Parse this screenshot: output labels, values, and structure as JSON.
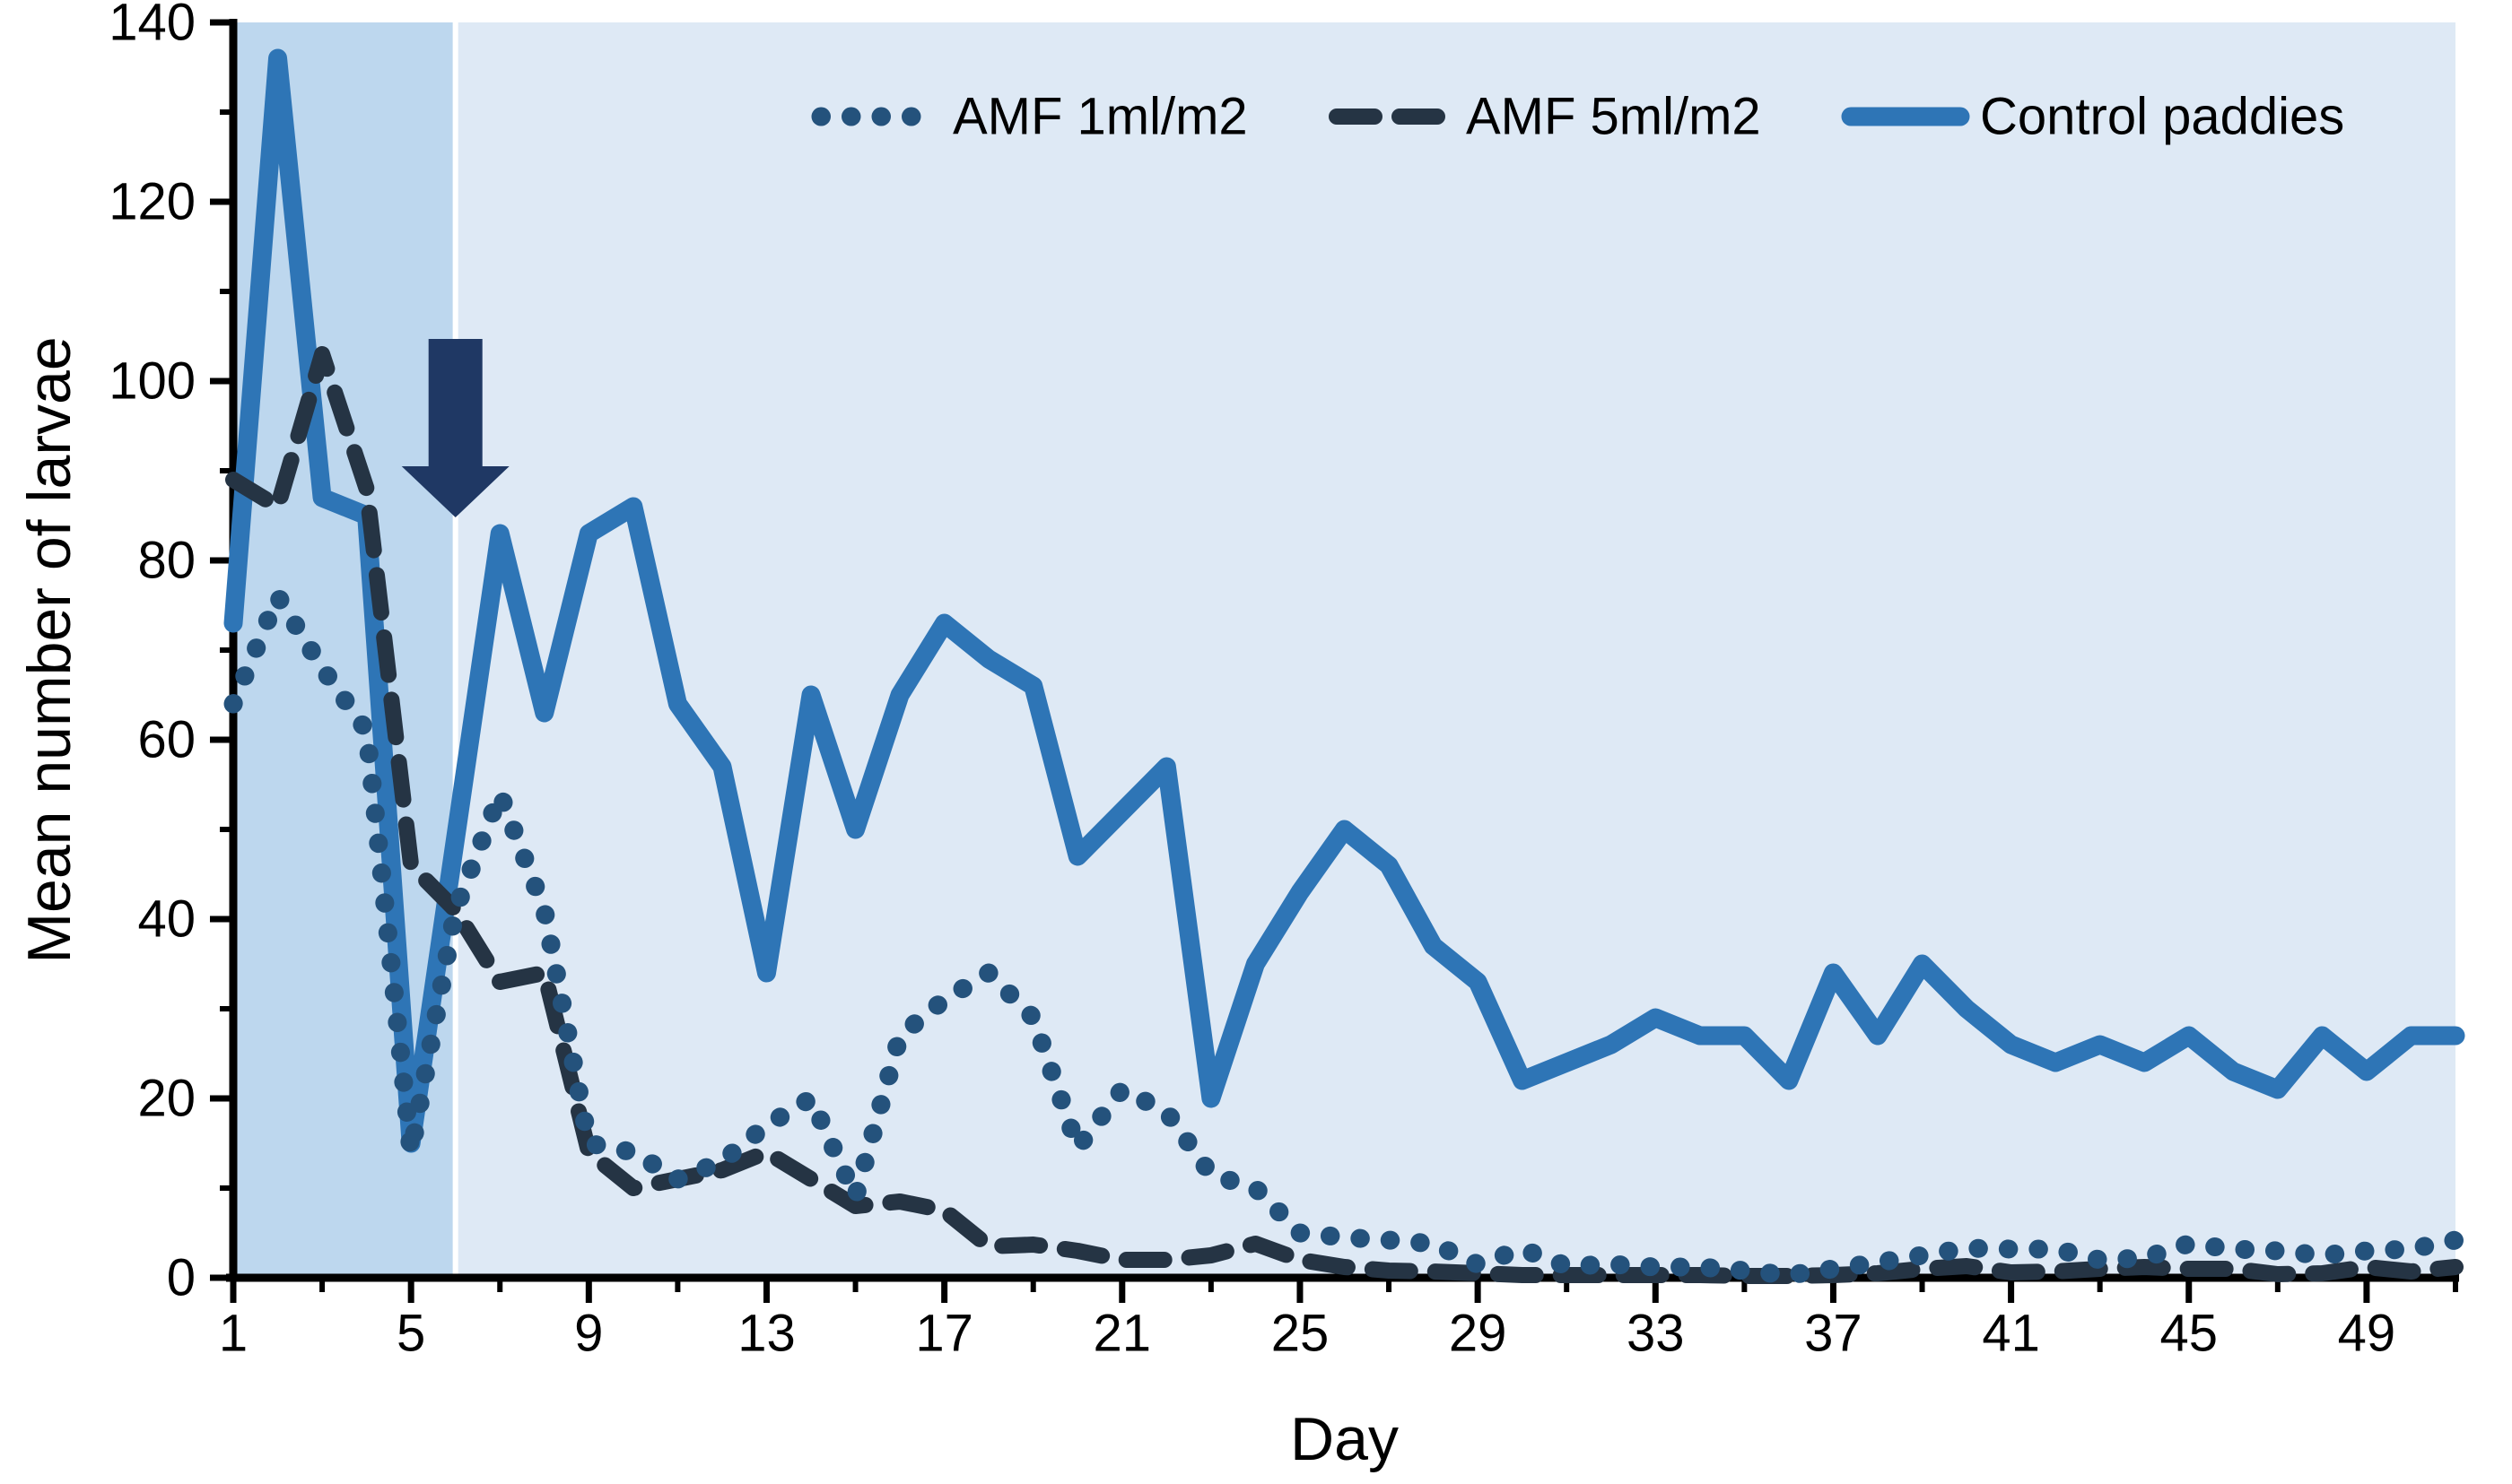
{
  "chart_data": {
    "type": "line",
    "xlabel": "Day",
    "ylabel": "Mean number of larvae",
    "ylim": [
      0,
      140
    ],
    "xlim": [
      1,
      51
    ],
    "yticks_major": [
      0,
      20,
      40,
      60,
      80,
      100,
      120,
      140
    ],
    "yticks_minor": [
      10,
      30,
      50,
      70,
      90,
      110,
      130
    ],
    "xticks_major": [
      1,
      5,
      9,
      13,
      17,
      21,
      25,
      29,
      33,
      37,
      41,
      45,
      49
    ],
    "xticks_minor": [
      3,
      7,
      11,
      15,
      19,
      23,
      27,
      31,
      35,
      39,
      43,
      47,
      51
    ],
    "grid": "off",
    "legend_position": "top-center",
    "plot_bg_color": "#DEE9F5",
    "shaded_region": {
      "x_start": 1,
      "x_end": 6,
      "color": "#BDD7EE",
      "divider_color": "#FFFFFF"
    },
    "annotation_arrow": {
      "x_day": 6,
      "points_down_to_value": 85,
      "color": "#1F3864"
    },
    "axis_color": "#000000",
    "days": [
      1,
      2,
      3,
      4,
      5,
      6,
      7,
      8,
      9,
      10,
      11,
      12,
      13,
      14,
      15,
      16,
      17,
      18,
      19,
      20,
      21,
      22,
      23,
      24,
      25,
      26,
      27,
      28,
      29,
      30,
      31,
      32,
      33,
      34,
      35,
      36,
      37,
      38,
      39,
      40,
      41,
      42,
      43,
      44,
      45,
      46,
      47,
      48,
      49,
      50,
      51
    ],
    "series": [
      {
        "name": "AMF 1ml/m2",
        "style": "dotted",
        "color": "#24527C",
        "values": [
          64,
          76,
          68,
          61,
          14,
          41,
          54,
          41,
          15,
          14,
          11,
          13,
          17,
          20,
          9,
          27,
          31,
          34,
          29,
          14.5,
          21,
          18.5,
          11.5,
          10,
          5,
          4.5,
          4.2,
          3.8,
          1.5,
          3.2,
          1.3,
          1.5,
          1.2,
          1.2,
          0.8,
          0.3,
          1,
          1.7,
          2.5,
          3.3,
          3.2,
          3.2,
          2,
          2.2,
          3.8,
          3.2,
          3,
          2.5,
          3,
          3.2,
          4.2
        ]
      },
      {
        "name": "AMF 5ml/m2",
        "style": "dashed",
        "color": "#253444",
        "values": [
          89,
          86,
          103,
          88,
          46,
          41,
          33,
          34,
          14,
          10,
          11,
          12,
          14,
          11,
          8,
          8.5,
          7.5,
          3.5,
          3.7,
          3,
          2,
          2,
          2.5,
          3.8,
          2,
          1.2,
          0.8,
          0.7,
          0.5,
          0.3,
          0.3,
          0.3,
          0.3,
          0.3,
          0.2,
          0.2,
          0.3,
          0.5,
          1,
          1.3,
          0.6,
          0.7,
          1,
          1.2,
          1,
          1,
          0.4,
          0.5,
          1.2,
          0.7,
          1.2
        ]
      },
      {
        "name": "Control paddies",
        "style": "solid",
        "color": "#2E75B6",
        "values": [
          73,
          136,
          87,
          85,
          15,
          49,
          83,
          63,
          83,
          86,
          64,
          57,
          34,
          65,
          50,
          65,
          73,
          69,
          66,
          47,
          52,
          57,
          20,
          35,
          43,
          50,
          46,
          37,
          33,
          22,
          24,
          26,
          29,
          27,
          27,
          22,
          34,
          27,
          35,
          30,
          26,
          24,
          26,
          24,
          27,
          23,
          21,
          27,
          23,
          27,
          27
        ]
      }
    ]
  }
}
